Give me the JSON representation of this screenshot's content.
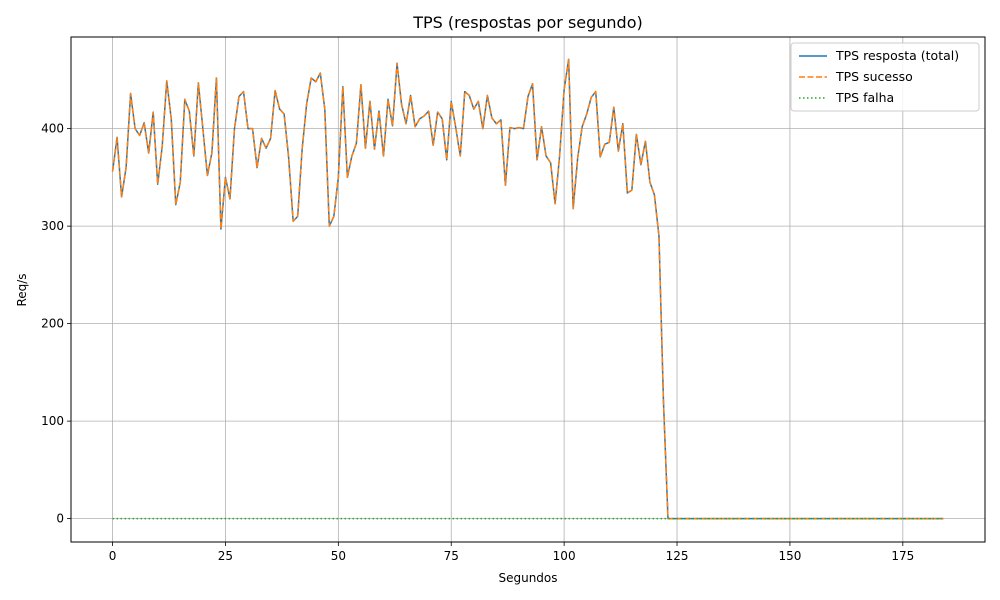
{
  "chart_data": {
    "type": "line",
    "title": "TPS (respostas por segundo)",
    "xlabel": "Segundos",
    "ylabel": "Req/s",
    "xlim": [
      -9.2,
      193.2
    ],
    "ylim": [
      -24,
      494
    ],
    "xticks": [
      0,
      25,
      50,
      75,
      100,
      125,
      150,
      175
    ],
    "yticks": [
      0,
      100,
      200,
      300,
      400
    ],
    "grid": true,
    "legend_position": "top-right",
    "series": [
      {
        "name": "TPS resposta (total)",
        "color": "#1f77b4",
        "style": "solid",
        "x": [
          0,
          1,
          2,
          3,
          4,
          5,
          6,
          7,
          8,
          9,
          10,
          11,
          12,
          13,
          14,
          15,
          16,
          17,
          18,
          19,
          20,
          21,
          22,
          23,
          24,
          25,
          26,
          27,
          28,
          29,
          30,
          31,
          32,
          33,
          34,
          35,
          36,
          37,
          38,
          39,
          40,
          41,
          42,
          43,
          44,
          45,
          46,
          47,
          48,
          49,
          50,
          51,
          52,
          53,
          54,
          55,
          56,
          57,
          58,
          59,
          60,
          61,
          62,
          63,
          64,
          65,
          66,
          67,
          68,
          69,
          70,
          71,
          72,
          73,
          74,
          75,
          76,
          77,
          78,
          79,
          80,
          81,
          82,
          83,
          84,
          85,
          86,
          87,
          88,
          89,
          90,
          91,
          92,
          93,
          94,
          95,
          96,
          97,
          98,
          99,
          100,
          101,
          102,
          103,
          104,
          105,
          106,
          107,
          108,
          109,
          110,
          111,
          112,
          113,
          114,
          115,
          116,
          117,
          118,
          119,
          120,
          121,
          122,
          123,
          124,
          184
        ],
        "values": [
          356,
          391,
          330,
          360,
          436,
          400,
          393,
          406,
          375,
          417,
          343,
          382,
          449,
          410,
          322,
          345,
          430,
          418,
          372,
          447,
          400,
          352,
          375,
          452,
          297,
          350,
          328,
          400,
          433,
          438,
          400,
          400,
          360,
          390,
          380,
          390,
          439,
          420,
          415,
          370,
          305,
          310,
          380,
          426,
          452,
          448,
          457,
          420,
          300,
          310,
          350,
          443,
          350,
          372,
          385,
          445,
          380,
          428,
          379,
          418,
          372,
          430,
          403,
          467,
          425,
          405,
          434,
          402,
          410,
          413,
          418,
          383,
          417,
          410,
          368,
          428,
          401,
          372,
          438,
          434,
          420,
          428,
          400,
          434,
          411,
          405,
          409,
          342,
          401,
          400,
          401,
          400,
          433,
          446,
          368,
          402,
          372,
          365,
          323,
          372,
          440,
          471,
          318,
          370,
          402,
          415,
          432,
          438,
          371,
          384,
          386,
          422,
          377,
          405,
          334,
          337,
          394,
          363,
          387,
          345,
          332,
          290,
          120,
          0,
          0,
          0
        ]
      },
      {
        "name": "TPS sucesso",
        "color": "#ff7f0e",
        "style": "dashed",
        "x": [
          0,
          1,
          2,
          3,
          4,
          5,
          6,
          7,
          8,
          9,
          10,
          11,
          12,
          13,
          14,
          15,
          16,
          17,
          18,
          19,
          20,
          21,
          22,
          23,
          24,
          25,
          26,
          27,
          28,
          29,
          30,
          31,
          32,
          33,
          34,
          35,
          36,
          37,
          38,
          39,
          40,
          41,
          42,
          43,
          44,
          45,
          46,
          47,
          48,
          49,
          50,
          51,
          52,
          53,
          54,
          55,
          56,
          57,
          58,
          59,
          60,
          61,
          62,
          63,
          64,
          65,
          66,
          67,
          68,
          69,
          70,
          71,
          72,
          73,
          74,
          75,
          76,
          77,
          78,
          79,
          80,
          81,
          82,
          83,
          84,
          85,
          86,
          87,
          88,
          89,
          90,
          91,
          92,
          93,
          94,
          95,
          96,
          97,
          98,
          99,
          100,
          101,
          102,
          103,
          104,
          105,
          106,
          107,
          108,
          109,
          110,
          111,
          112,
          113,
          114,
          115,
          116,
          117,
          118,
          119,
          120,
          121,
          122,
          123,
          124,
          184
        ],
        "values": [
          356,
          391,
          330,
          360,
          436,
          400,
          393,
          406,
          375,
          417,
          343,
          382,
          449,
          410,
          322,
          345,
          430,
          418,
          372,
          447,
          400,
          352,
          375,
          452,
          297,
          350,
          328,
          400,
          433,
          438,
          400,
          400,
          360,
          390,
          380,
          390,
          439,
          420,
          415,
          370,
          305,
          310,
          380,
          426,
          452,
          448,
          457,
          420,
          300,
          310,
          350,
          443,
          350,
          372,
          385,
          445,
          380,
          428,
          379,
          418,
          372,
          430,
          403,
          467,
          425,
          405,
          434,
          402,
          410,
          413,
          418,
          383,
          417,
          410,
          368,
          428,
          401,
          372,
          438,
          434,
          420,
          428,
          400,
          434,
          411,
          405,
          409,
          342,
          401,
          400,
          401,
          400,
          433,
          446,
          368,
          402,
          372,
          365,
          323,
          372,
          440,
          471,
          318,
          370,
          402,
          415,
          432,
          438,
          371,
          384,
          386,
          422,
          377,
          405,
          334,
          337,
          394,
          363,
          387,
          345,
          332,
          290,
          120,
          0,
          0,
          0
        ]
      },
      {
        "name": "TPS falha",
        "color": "#2ca02c",
        "style": "dotted",
        "x": [
          0,
          184
        ],
        "values": [
          0,
          0
        ]
      }
    ]
  }
}
